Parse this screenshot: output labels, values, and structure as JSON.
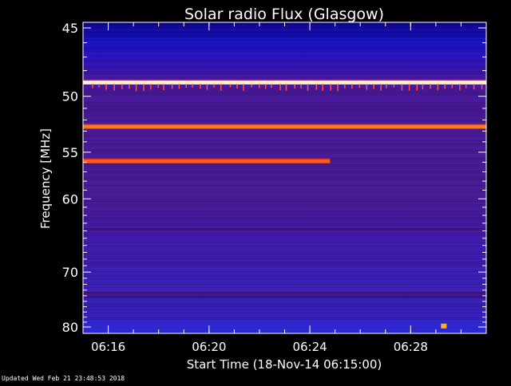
{
  "footer": {
    "updated": "Updated Wed Feb 21 23:48:53 2018"
  },
  "chart_data": {
    "type": "heatmap",
    "title": "Solar radio Flux (Glasgow)",
    "xlabel": "Start Time (18-Nov-14 06:15:00)",
    "ylabel": "Frequency [MHz]",
    "xlim_minutes": [
      0,
      16
    ],
    "ylim_mhz": [
      44.3,
      80.5
    ],
    "x_ticks": [
      {
        "label": "06:16",
        "minute": 1
      },
      {
        "label": "06:20",
        "minute": 5
      },
      {
        "label": "06:24",
        "minute": 9
      },
      {
        "label": "06:28",
        "minute": 13
      }
    ],
    "y_ticks": [
      {
        "label": "45",
        "mhz": 45
      },
      {
        "label": "50",
        "mhz": 50
      },
      {
        "label": "55",
        "mhz": 55
      },
      {
        "label": "60",
        "mhz": 60
      },
      {
        "label": "70",
        "mhz": 70
      },
      {
        "label": "80",
        "mhz": 80
      }
    ],
    "y_minor_mhz": [
      46,
      47,
      48,
      49,
      51,
      52,
      53,
      54,
      56,
      57,
      58,
      59,
      61,
      62,
      63,
      64,
      65,
      66,
      67,
      68,
      69,
      71,
      72,
      73,
      74,
      75,
      76,
      77,
      78,
      79
    ],
    "y_scale": "reciprocal",
    "background_color": "#3a18a8",
    "emission_lines": [
      {
        "name": "line-48_9",
        "mhz": 48.9,
        "start_minute": 0,
        "end_minute": 16,
        "color": "#fff6d0"
      },
      {
        "name": "line-52_5",
        "mhz": 52.6,
        "start_minute": 0,
        "end_minute": 16,
        "color": "#ff7a1a"
      },
      {
        "name": "line-56_0",
        "mhz": 55.9,
        "start_minute": 0,
        "end_minute": 9.8,
        "color": "#ff5a14"
      }
    ],
    "bright_spot": {
      "minute": 14.3,
      "mhz": 79.8,
      "color": "#ffb020"
    }
  }
}
